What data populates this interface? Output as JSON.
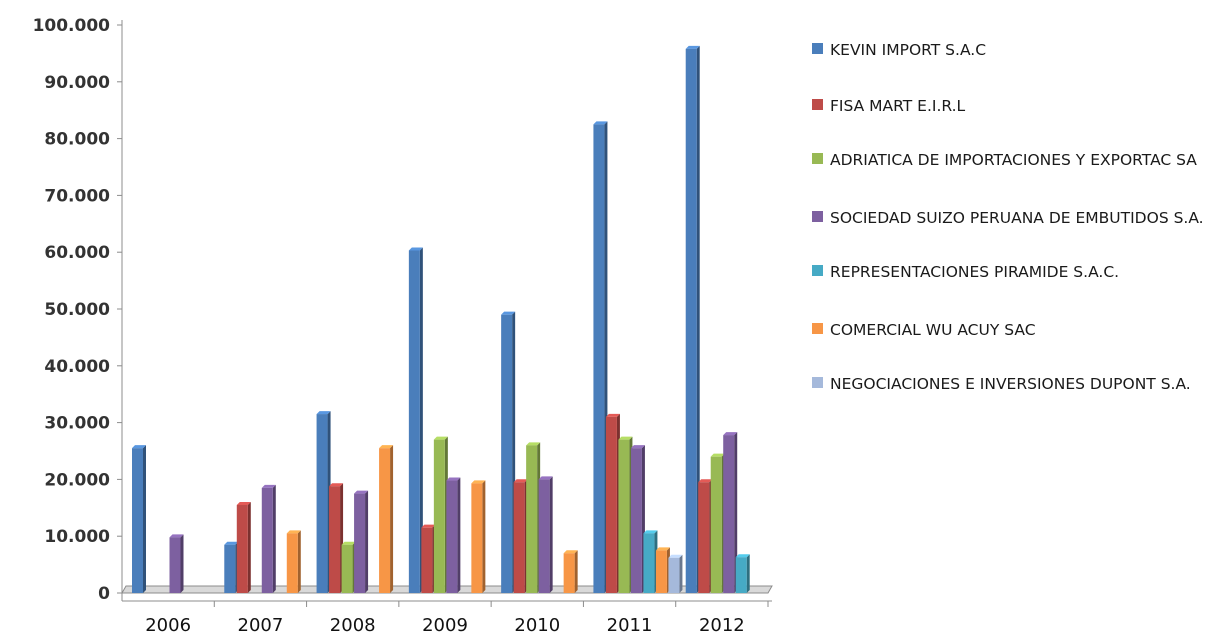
{
  "chart_data": {
    "type": "bar",
    "title": "",
    "xlabel": "",
    "ylabel": "",
    "categories": [
      "2006",
      "2007",
      "2008",
      "2009",
      "2010",
      "2011",
      "2012"
    ],
    "ylim": [
      0,
      100000
    ],
    "yticks": [
      "0",
      "10.000",
      "20.000",
      "30.000",
      "40.000",
      "50.000",
      "60.000",
      "70.000",
      "80.000",
      "90.000",
      "100.000"
    ],
    "legend_position": "right",
    "series": [
      {
        "name": "KEVIN IMPORT S.A.C",
        "color": "#4a7ebb",
        "values": [
          25500,
          8500,
          31500,
          60300,
          49000,
          82500,
          95800
        ]
      },
      {
        "name": "FISA MART E.I.R.L",
        "color": "#be4b48",
        "values": [
          0,
          15500,
          18800,
          11500,
          19500,
          31000,
          19500
        ]
      },
      {
        "name": "ADRIATICA DE IMPORTACIONES Y EXPORTAC SA",
        "color": "#98b954",
        "values": [
          0,
          0,
          8500,
          27000,
          26000,
          27000,
          24000
        ]
      },
      {
        "name": "SOCIEDAD SUIZO PERUANA DE EMBUTIDOS S.A.",
        "color": "#7d60a0",
        "values": [
          9800,
          18500,
          17500,
          19800,
          20000,
          25500,
          27800
        ]
      },
      {
        "name": "REPRESENTACIONES PIRAMIDE S.A.C.",
        "color": "#46aac5",
        "values": [
          0,
          0,
          0,
          0,
          0,
          10500,
          6300
        ]
      },
      {
        "name": "COMERCIAL WU ACUY SAC",
        "color": "#f79646",
        "values": [
          0,
          10500,
          25500,
          19300,
          7000,
          7500,
          0
        ]
      },
      {
        "name": "NEGOCIACIONES E INVERSIONES DUPONT S.A.",
        "color": "#a5b9db",
        "values": [
          0,
          0,
          0,
          0,
          0,
          6200,
          0
        ]
      }
    ]
  }
}
